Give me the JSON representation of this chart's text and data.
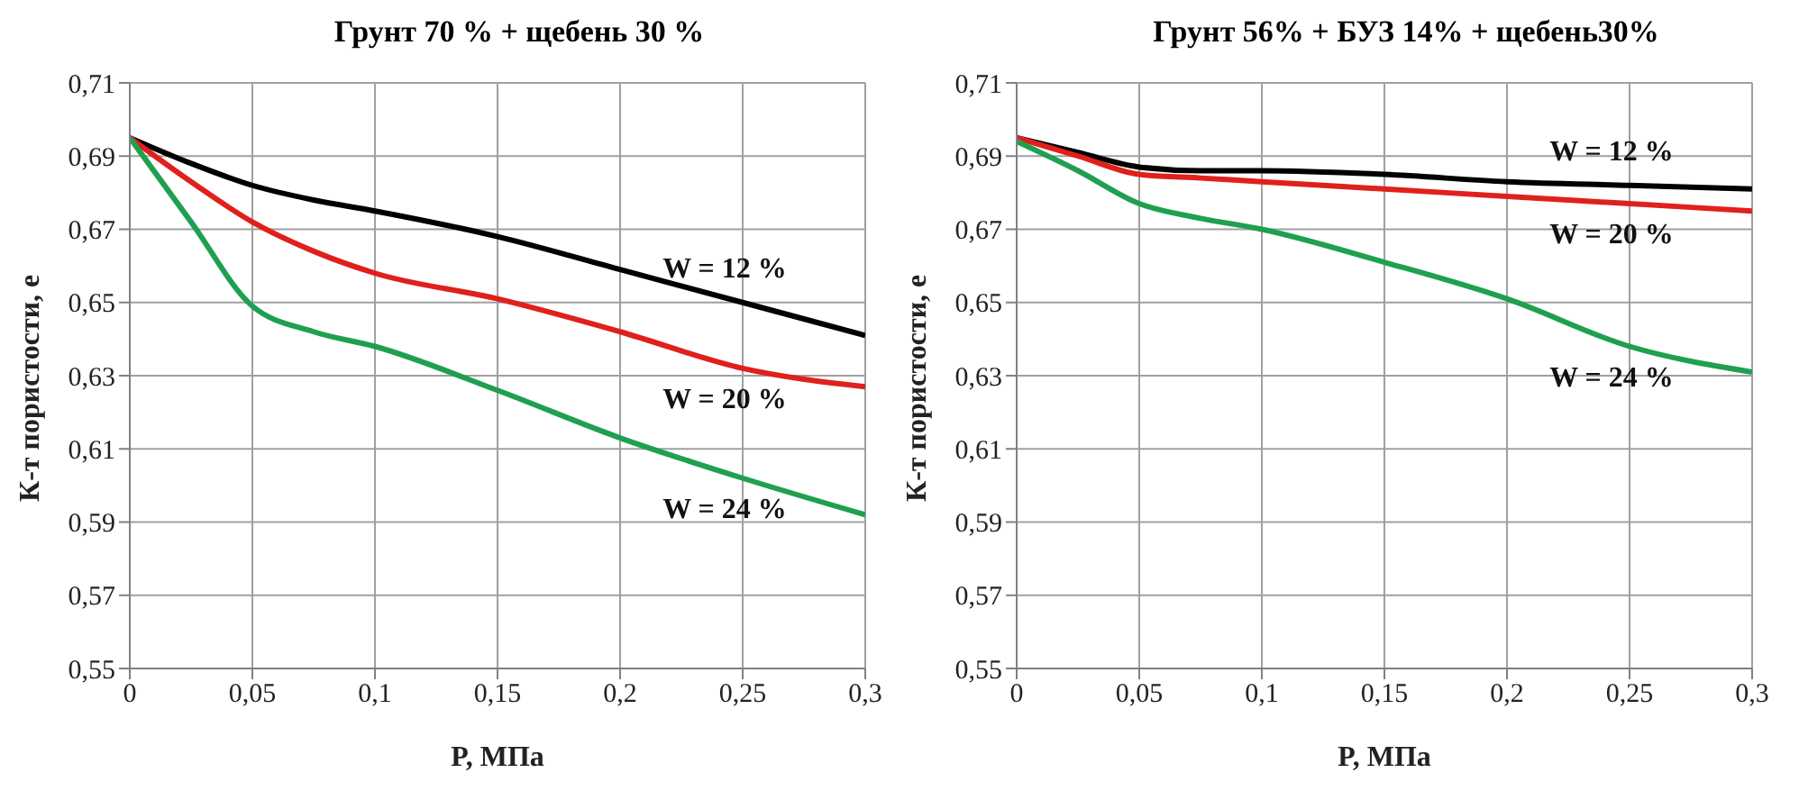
{
  "chart_data": [
    {
      "type": "line",
      "title": "Грунт 70 % + щебень 30 %",
      "xlabel": "P, МПа",
      "ylabel": "К-т пористости, е",
      "x": [
        0,
        0.025,
        0.05,
        0.075,
        0.1,
        0.15,
        0.2,
        0.25,
        0.3
      ],
      "xlim": [
        0,
        0.3
      ],
      "xticks": [
        0,
        {
          "value": 0.05,
          "label": "0,05"
        },
        {
          "value": 0.1,
          "label": "0,1"
        },
        {
          "value": 0.15,
          "label": "0,15"
        },
        {
          "value": 0.2,
          "label": "0,2"
        },
        {
          "value": 0.25,
          "label": "0,25"
        },
        {
          "value": 0.3,
          "label": "0,3"
        }
      ],
      "ylim": [
        0.55,
        0.71
      ],
      "yticks": [
        {
          "value": 0.55,
          "label": "0,55"
        },
        {
          "value": 0.57,
          "label": "0,57"
        },
        {
          "value": 0.59,
          "label": "0,59"
        },
        {
          "value": 0.61,
          "label": "0,61"
        },
        {
          "value": 0.63,
          "label": "0,63"
        },
        {
          "value": 0.65,
          "label": "0,65"
        },
        {
          "value": 0.67,
          "label": "0,67"
        },
        {
          "value": 0.69,
          "label": "0,69"
        },
        {
          "value": 0.71,
          "label": "0,71"
        }
      ],
      "grid": true,
      "series": [
        {
          "name": "W = 12 %",
          "color": "#000000",
          "values": [
            0.695,
            0.688,
            0.682,
            0.678,
            0.675,
            0.668,
            0.659,
            0.65,
            0.641
          ]
        },
        {
          "name": "W = 20 %",
          "color": "#e0201c",
          "values": [
            0.695,
            0.683,
            0.672,
            0.664,
            0.658,
            0.651,
            0.642,
            0.632,
            0.627
          ]
        },
        {
          "name": "W = 24 %",
          "color": "#1fa050",
          "values": [
            0.695,
            0.672,
            0.649,
            0.642,
            0.638,
            0.626,
            0.613,
            0.602,
            0.592
          ]
        }
      ]
    },
    {
      "type": "line",
      "title": "Грунт 56% + БУЗ 14% + щебень30%",
      "xlabel": "P, МПа",
      "ylabel": "К-т пористости, е",
      "x": [
        0,
        0.025,
        0.05,
        0.075,
        0.1,
        0.15,
        0.2,
        0.25,
        0.3
      ],
      "xlim": [
        0,
        0.3
      ],
      "xticks": [
        0,
        {
          "value": 0.05,
          "label": "0,05"
        },
        {
          "value": 0.1,
          "label": "0,1"
        },
        {
          "value": 0.15,
          "label": "0,15"
        },
        {
          "value": 0.2,
          "label": "0,2"
        },
        {
          "value": 0.25,
          "label": "0,25"
        },
        {
          "value": 0.3,
          "label": "0,3"
        }
      ],
      "ylim": [
        0.55,
        0.71
      ],
      "yticks": [
        {
          "value": 0.55,
          "label": "0,55"
        },
        {
          "value": 0.57,
          "label": "0,57"
        },
        {
          "value": 0.59,
          "label": "0,59"
        },
        {
          "value": 0.61,
          "label": "0,61"
        },
        {
          "value": 0.63,
          "label": "0,63"
        },
        {
          "value": 0.65,
          "label": "0,65"
        },
        {
          "value": 0.67,
          "label": "0,67"
        },
        {
          "value": 0.69,
          "label": "0,69"
        },
        {
          "value": 0.71,
          "label": "0,71"
        }
      ],
      "grid": true,
      "series": [
        {
          "name": "W = 12 %",
          "color": "#000000",
          "values": [
            0.695,
            0.691,
            0.687,
            0.686,
            0.686,
            0.685,
            0.683,
            0.682,
            0.681
          ]
        },
        {
          "name": "W = 20 %",
          "color": "#e0201c",
          "values": [
            0.695,
            0.69,
            0.685,
            0.684,
            0.683,
            0.681,
            0.679,
            0.677,
            0.675
          ]
        },
        {
          "name": "W = 24 %",
          "color": "#1fa050",
          "values": [
            0.694,
            0.686,
            0.677,
            0.673,
            0.67,
            0.661,
            0.651,
            0.638,
            0.631
          ]
        }
      ]
    }
  ]
}
